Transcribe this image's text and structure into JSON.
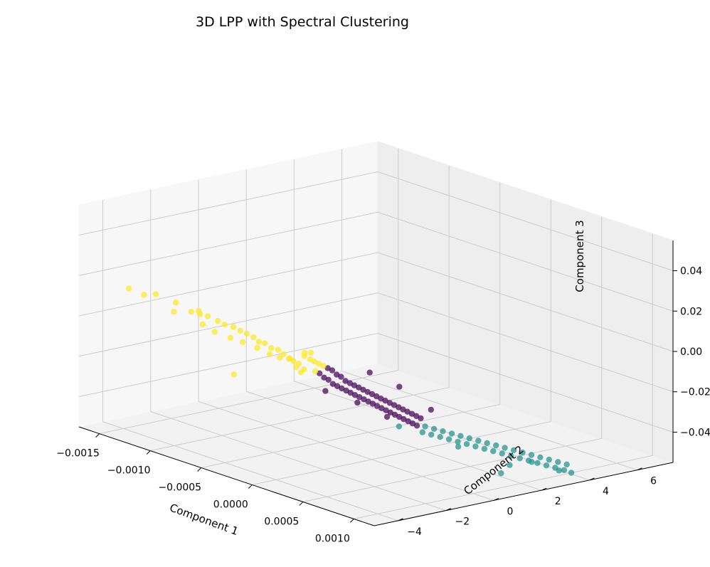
{
  "chart_data": {
    "type": "scatter",
    "title": "3D LPP with Spectral Clustering",
    "xlabel": "Component 1",
    "ylabel": "Component 2",
    "zlabel": "Component 3",
    "xlim": [
      -0.0017,
      0.0012
    ],
    "ylim": [
      -5,
      7.5
    ],
    "zlim": [
      -0.055,
      0.055
    ],
    "grid": true,
    "x_ticks": [
      "−0.0015",
      "−0.0010",
      "−0.0005",
      "0.0000",
      "0.0005",
      "0.0010"
    ],
    "x_tick_values": [
      -0.0015,
      -0.001,
      -0.0005,
      0,
      0.0005,
      0.001
    ],
    "y_ticks": [
      "−4",
      "−2",
      "0",
      "2",
      "4",
      "6"
    ],
    "y_tick_values": [
      -4,
      -2,
      0,
      2,
      4,
      6
    ],
    "z_ticks": [
      "−0.04",
      "−0.02",
      "0.00",
      "0.02",
      "0.04"
    ],
    "z_tick_values": [
      -0.04,
      -0.02,
      0,
      0.02,
      0.04
    ],
    "series": [
      {
        "color": "#fde725",
        "points": [
          [
            -0.00135,
            -4.4,
            0.018
          ],
          [
            -0.00125,
            -4.2,
            0.016
          ],
          [
            -0.00118,
            -4.0,
            0.017
          ],
          [
            -0.0011,
            -3.5,
            0.013
          ],
          [
            -0.00105,
            -3.8,
            0.01
          ],
          [
            -0.00102,
            -3.2,
            0.009
          ],
          [
            -0.00098,
            -3.0,
            0.008
          ],
          [
            -0.00095,
            -2.8,
            0.007
          ],
          [
            -0.00093,
            -3.1,
            0.004
          ],
          [
            -0.0009,
            -2.6,
            0.005
          ],
          [
            -0.00088,
            -2.4,
            0.003
          ],
          [
            -0.00086,
            -2.9,
            0.001
          ],
          [
            -0.00084,
            -2.2,
            0.002
          ],
          [
            -0.00082,
            -2.0,
            0.0
          ],
          [
            -0.0008,
            -2.5,
            -0.002
          ],
          [
            -0.00078,
            -1.9,
            -0.001
          ],
          [
            -0.00076,
            -1.7,
            -0.003
          ],
          [
            -0.00075,
            -2.2,
            -0.004
          ],
          [
            -0.00073,
            -1.6,
            -0.005
          ],
          [
            -0.00072,
            -1.4,
            -0.006
          ],
          [
            -0.0007,
            -1.8,
            -0.007
          ],
          [
            -0.00068,
            -1.3,
            -0.008
          ],
          [
            -0.00066,
            -1.1,
            -0.009
          ],
          [
            -0.00065,
            -1.5,
            -0.01
          ],
          [
            -0.00063,
            -1.0,
            -0.011
          ],
          [
            -0.00062,
            -1.2,
            -0.012
          ],
          [
            -0.0006,
            -0.9,
            -0.013
          ],
          [
            -0.00058,
            -0.8,
            -0.014
          ],
          [
            -0.00057,
            -1.0,
            -0.012
          ],
          [
            -0.00055,
            -0.7,
            -0.015
          ],
          [
            -0.00054,
            -0.5,
            -0.01
          ],
          [
            -0.00053,
            -0.9,
            -0.016
          ],
          [
            -0.00052,
            -0.6,
            -0.011
          ],
          [
            -0.00051,
            -0.4,
            -0.013
          ],
          [
            -0.0005,
            -0.7,
            -0.017
          ],
          [
            -0.00049,
            -0.3,
            -0.014
          ],
          [
            -0.00048,
            -0.5,
            -0.009
          ],
          [
            -0.00047,
            -0.2,
            -0.015
          ],
          [
            -0.00046,
            -0.4,
            -0.018
          ],
          [
            -0.00045,
            -0.1,
            -0.016
          ],
          [
            -0.001,
            -1.5,
            -0.026
          ],
          [
            -0.0006,
            -0.4,
            -0.021
          ],
          [
            -0.0009,
            -3.4,
            0.012
          ]
        ]
      },
      {
        "color": "#440154",
        "points": [
          [
            -0.00044,
            -0.3,
            -0.019
          ],
          [
            -0.00043,
            0.0,
            -0.017
          ],
          [
            -0.00042,
            -0.2,
            -0.021
          ],
          [
            -0.00041,
            0.1,
            -0.018
          ],
          [
            -0.0004,
            -0.1,
            -0.022
          ],
          [
            -0.00039,
            0.2,
            -0.02
          ],
          [
            -0.00038,
            0.0,
            -0.024
          ],
          [
            -0.00037,
            0.3,
            -0.021
          ],
          [
            -0.00036,
            0.1,
            -0.025
          ],
          [
            -0.00035,
            0.4,
            -0.023
          ],
          [
            -0.00034,
            0.2,
            -0.026
          ],
          [
            -0.00033,
            0.5,
            -0.024
          ],
          [
            -0.00032,
            0.3,
            -0.027
          ],
          [
            -0.00031,
            0.6,
            -0.025
          ],
          [
            -0.0003,
            0.4,
            -0.028
          ],
          [
            -0.00029,
            0.7,
            -0.026
          ],
          [
            -0.00028,
            0.5,
            -0.029
          ],
          [
            -0.00027,
            0.8,
            -0.027
          ],
          [
            -0.00026,
            0.6,
            -0.03
          ],
          [
            -0.00025,
            0.9,
            -0.028
          ],
          [
            -0.00024,
            0.7,
            -0.031
          ],
          [
            -0.00023,
            1.0,
            -0.029
          ],
          [
            -0.00022,
            0.8,
            -0.032
          ],
          [
            -0.00021,
            1.1,
            -0.03
          ],
          [
            -0.0002,
            0.9,
            -0.033
          ],
          [
            -0.00019,
            1.2,
            -0.031
          ],
          [
            -0.00018,
            1.0,
            -0.034
          ],
          [
            -0.00017,
            1.3,
            -0.032
          ],
          [
            -0.00016,
            1.1,
            -0.035
          ],
          [
            -0.00015,
            1.4,
            -0.033
          ],
          [
            -0.00014,
            1.2,
            -0.036
          ],
          [
            -0.00013,
            1.5,
            -0.034
          ],
          [
            -0.00012,
            1.3,
            -0.037
          ],
          [
            -0.00011,
            1.6,
            -0.035
          ],
          [
            -0.0001,
            1.4,
            -0.038
          ],
          [
            -9e-05,
            1.7,
            -0.036
          ],
          [
            -8e-05,
            1.5,
            -0.039
          ],
          [
            -7e-05,
            1.8,
            -0.037
          ],
          [
            -6e-05,
            1.6,
            -0.04
          ],
          [
            -5e-05,
            1.9,
            -0.038
          ],
          [
            -4e-05,
            1.7,
            -0.041
          ],
          [
            -3e-05,
            2.0,
            -0.039
          ],
          [
            -2e-05,
            1.8,
            -0.042
          ],
          [
            -1e-05,
            2.1,
            -0.04
          ],
          [
            0.0,
            1.9,
            -0.043
          ],
          [
            -0.0003,
            1.2,
            -0.02
          ],
          [
            -0.00015,
            1.8,
            -0.026
          ],
          [
            -0.0005,
            0.2,
            -0.03
          ],
          [
            -0.00035,
            0.9,
            -0.035
          ],
          [
            2e-05,
            2.4,
            -0.036
          ],
          [
            -0.0002,
            1.5,
            -0.041
          ]
        ]
      },
      {
        "color": "#21918c",
        "points": [
          [
            1e-05,
            2.2,
            -0.044
          ],
          [
            3e-05,
            2.0,
            -0.046
          ],
          [
            5e-05,
            2.4,
            -0.045
          ],
          [
            7e-05,
            2.2,
            -0.047
          ],
          [
            9e-05,
            2.6,
            -0.046
          ],
          [
            0.00011,
            2.4,
            -0.048
          ],
          [
            0.00013,
            2.8,
            -0.047
          ],
          [
            0.00015,
            2.6,
            -0.049
          ],
          [
            0.00017,
            3.0,
            -0.048
          ],
          [
            0.00019,
            2.8,
            -0.05
          ],
          [
            0.00021,
            3.2,
            -0.049
          ],
          [
            0.00023,
            3.0,
            -0.051
          ],
          [
            0.00025,
            3.4,
            -0.05
          ],
          [
            0.00027,
            3.2,
            -0.052
          ],
          [
            0.00029,
            3.6,
            -0.051
          ],
          [
            0.00031,
            3.4,
            -0.053
          ],
          [
            0.00033,
            3.8,
            -0.052
          ],
          [
            0.00035,
            3.6,
            -0.054
          ],
          [
            0.00037,
            4.0,
            -0.053
          ],
          [
            0.00039,
            3.8,
            -0.055
          ],
          [
            0.00041,
            4.2,
            -0.054
          ],
          [
            0.00043,
            4.0,
            -0.056
          ],
          [
            0.00045,
            4.4,
            -0.055
          ],
          [
            0.00047,
            4.2,
            -0.057
          ],
          [
            0.00049,
            4.6,
            -0.056
          ],
          [
            0.00051,
            4.4,
            -0.058
          ],
          [
            0.00053,
            4.8,
            -0.057
          ],
          [
            0.00055,
            4.6,
            -0.059
          ],
          [
            0.00057,
            5.0,
            -0.058
          ],
          [
            0.00059,
            4.8,
            -0.06
          ],
          [
            0.00061,
            5.2,
            -0.059
          ],
          [
            0.00063,
            5.0,
            -0.061
          ],
          [
            0.00065,
            5.4,
            -0.06
          ],
          [
            0.00067,
            5.2,
            -0.062
          ],
          [
            -0.0002,
            2.0,
            -0.047
          ],
          [
            0.0003,
            4.5,
            -0.064
          ],
          [
            0.00055,
            5.5,
            -0.065
          ],
          [
            0.00045,
            3.5,
            -0.063
          ],
          [
            0.0006,
            5.8,
            -0.066
          ],
          [
            0.0001,
            3.2,
            -0.055
          ],
          [
            0.0004,
            5.0,
            -0.062
          ]
        ]
      }
    ]
  }
}
